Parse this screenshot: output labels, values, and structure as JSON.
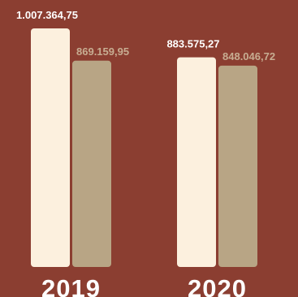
{
  "colors": {
    "background": "#8b3e31",
    "series_primary": "#fcf0de",
    "series_secondary": "#b8a585",
    "label_primary": "#ffffff",
    "label_secondary": "#c7ad92",
    "category_label": "#ffffff"
  },
  "chart_data": {
    "type": "bar",
    "title": "",
    "xlabel": "",
    "ylabel": "",
    "grid": false,
    "legend": "none",
    "ylim": [
      0,
      1100000
    ],
    "categories": [
      "2019",
      "2020"
    ],
    "series": [
      {
        "values": [
          1007364.75,
          883575.27
        ],
        "labels": [
          "1.007.364,75",
          "883.575,27"
        ]
      },
      {
        "values": [
          869159.95,
          848046.72
        ],
        "labels": [
          "869.159,95",
          "848.046,72"
        ]
      }
    ]
  }
}
